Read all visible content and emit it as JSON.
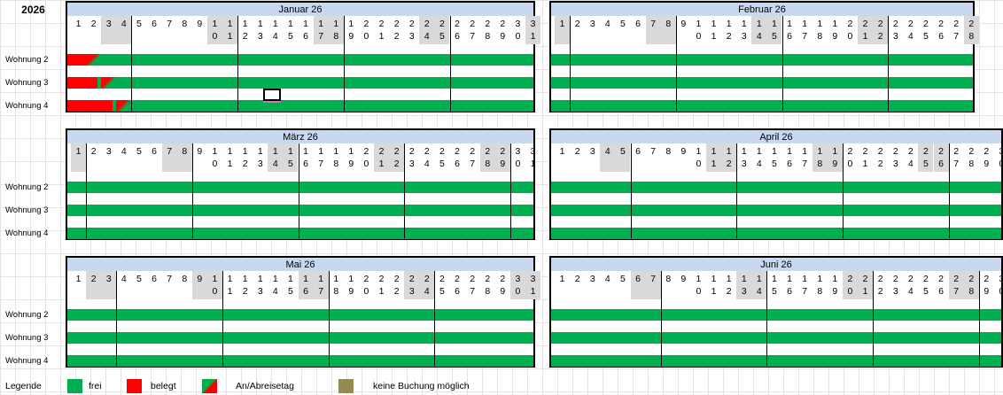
{
  "year": "2026",
  "rows": [
    "Wohnung 2",
    "Wohnung 3",
    "Wohnung 4"
  ],
  "months": [
    {
      "title": "Januar 26",
      "days": 31,
      "weekends": [
        3,
        4,
        10,
        11,
        17,
        18,
        24,
        25,
        31
      ]
    },
    {
      "title": "Februar 26",
      "days": 28,
      "weekends": [
        1,
        7,
        8,
        14,
        15,
        21,
        22,
        28
      ]
    },
    {
      "title": "März 26",
      "days": 31,
      "weekends": [
        1,
        7,
        8,
        14,
        15,
        21,
        22,
        28,
        29
      ]
    },
    {
      "title": "April 26",
      "days": 30,
      "weekends": [
        4,
        5,
        11,
        12,
        18,
        19,
        25,
        26
      ]
    },
    {
      "title": "Mai 26",
      "days": 31,
      "weekends": [
        2,
        3,
        9,
        10,
        16,
        17,
        23,
        24,
        30,
        31
      ]
    },
    {
      "title": "Juni 26",
      "days": 30,
      "weekends": [
        6,
        7,
        13,
        14,
        20,
        21,
        27,
        28
      ]
    }
  ],
  "bookings": [
    {
      "month": 0,
      "row": 0,
      "occupied_days": [
        1
      ],
      "changeover_day": 2
    },
    {
      "month": 0,
      "row": 1,
      "occupied_days": [
        1,
        2
      ],
      "changeover_day": 3
    },
    {
      "month": 0,
      "row": 2,
      "occupied_days": [
        1,
        2,
        3
      ],
      "changeover_day": 4
    }
  ],
  "legend": {
    "label": "Legende",
    "frei": "frei",
    "belegt": "belegt",
    "anab": "An/Abreisetag",
    "keine": "keine Buchung möglich"
  },
  "colors": {
    "free": "#00b050",
    "occupied": "#ff0000",
    "no_booking": "#948a54",
    "header": "#c6d9f1",
    "weekend": "#d9d9d9"
  }
}
